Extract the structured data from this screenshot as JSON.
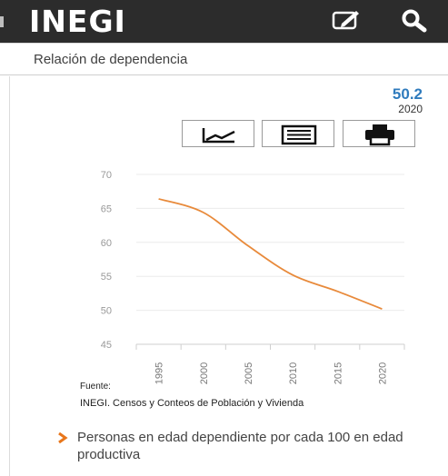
{
  "header": {
    "logo": "INEGI",
    "icons": [
      "edit-icon",
      "search-icon"
    ]
  },
  "indicator": {
    "title": "Relación de dependencia",
    "latest_value": "50.2",
    "latest_year": "2020",
    "description": "Personas en edad dependiente por cada 100 en edad productiva",
    "accent_color": "#2f7bbd"
  },
  "toolbar": {
    "buttons": [
      "line-chart-icon",
      "table-icon",
      "print-icon"
    ]
  },
  "source": {
    "label": "Fuente:",
    "text": "INEGI. Censos y Conteos de Población y Vivienda"
  },
  "chart_data": {
    "type": "line",
    "x": [
      1995,
      2000,
      2005,
      2010,
      2015,
      2020
    ],
    "series": [
      {
        "values": [
          66.4,
          64.4,
          59.5,
          55.2,
          52.8,
          50.2
        ],
        "color": "#e88a3b"
      }
    ],
    "yticks": [
      45,
      50,
      55,
      60,
      65,
      70
    ],
    "xticks": [
      "1995",
      "2000",
      "2005",
      "2010",
      "2015",
      "2020"
    ],
    "ylim": [
      45,
      70
    ],
    "xlim": [
      1992.5,
      2022.5
    ],
    "grid": true,
    "title": "",
    "xlabel": "",
    "ylabel": ""
  }
}
